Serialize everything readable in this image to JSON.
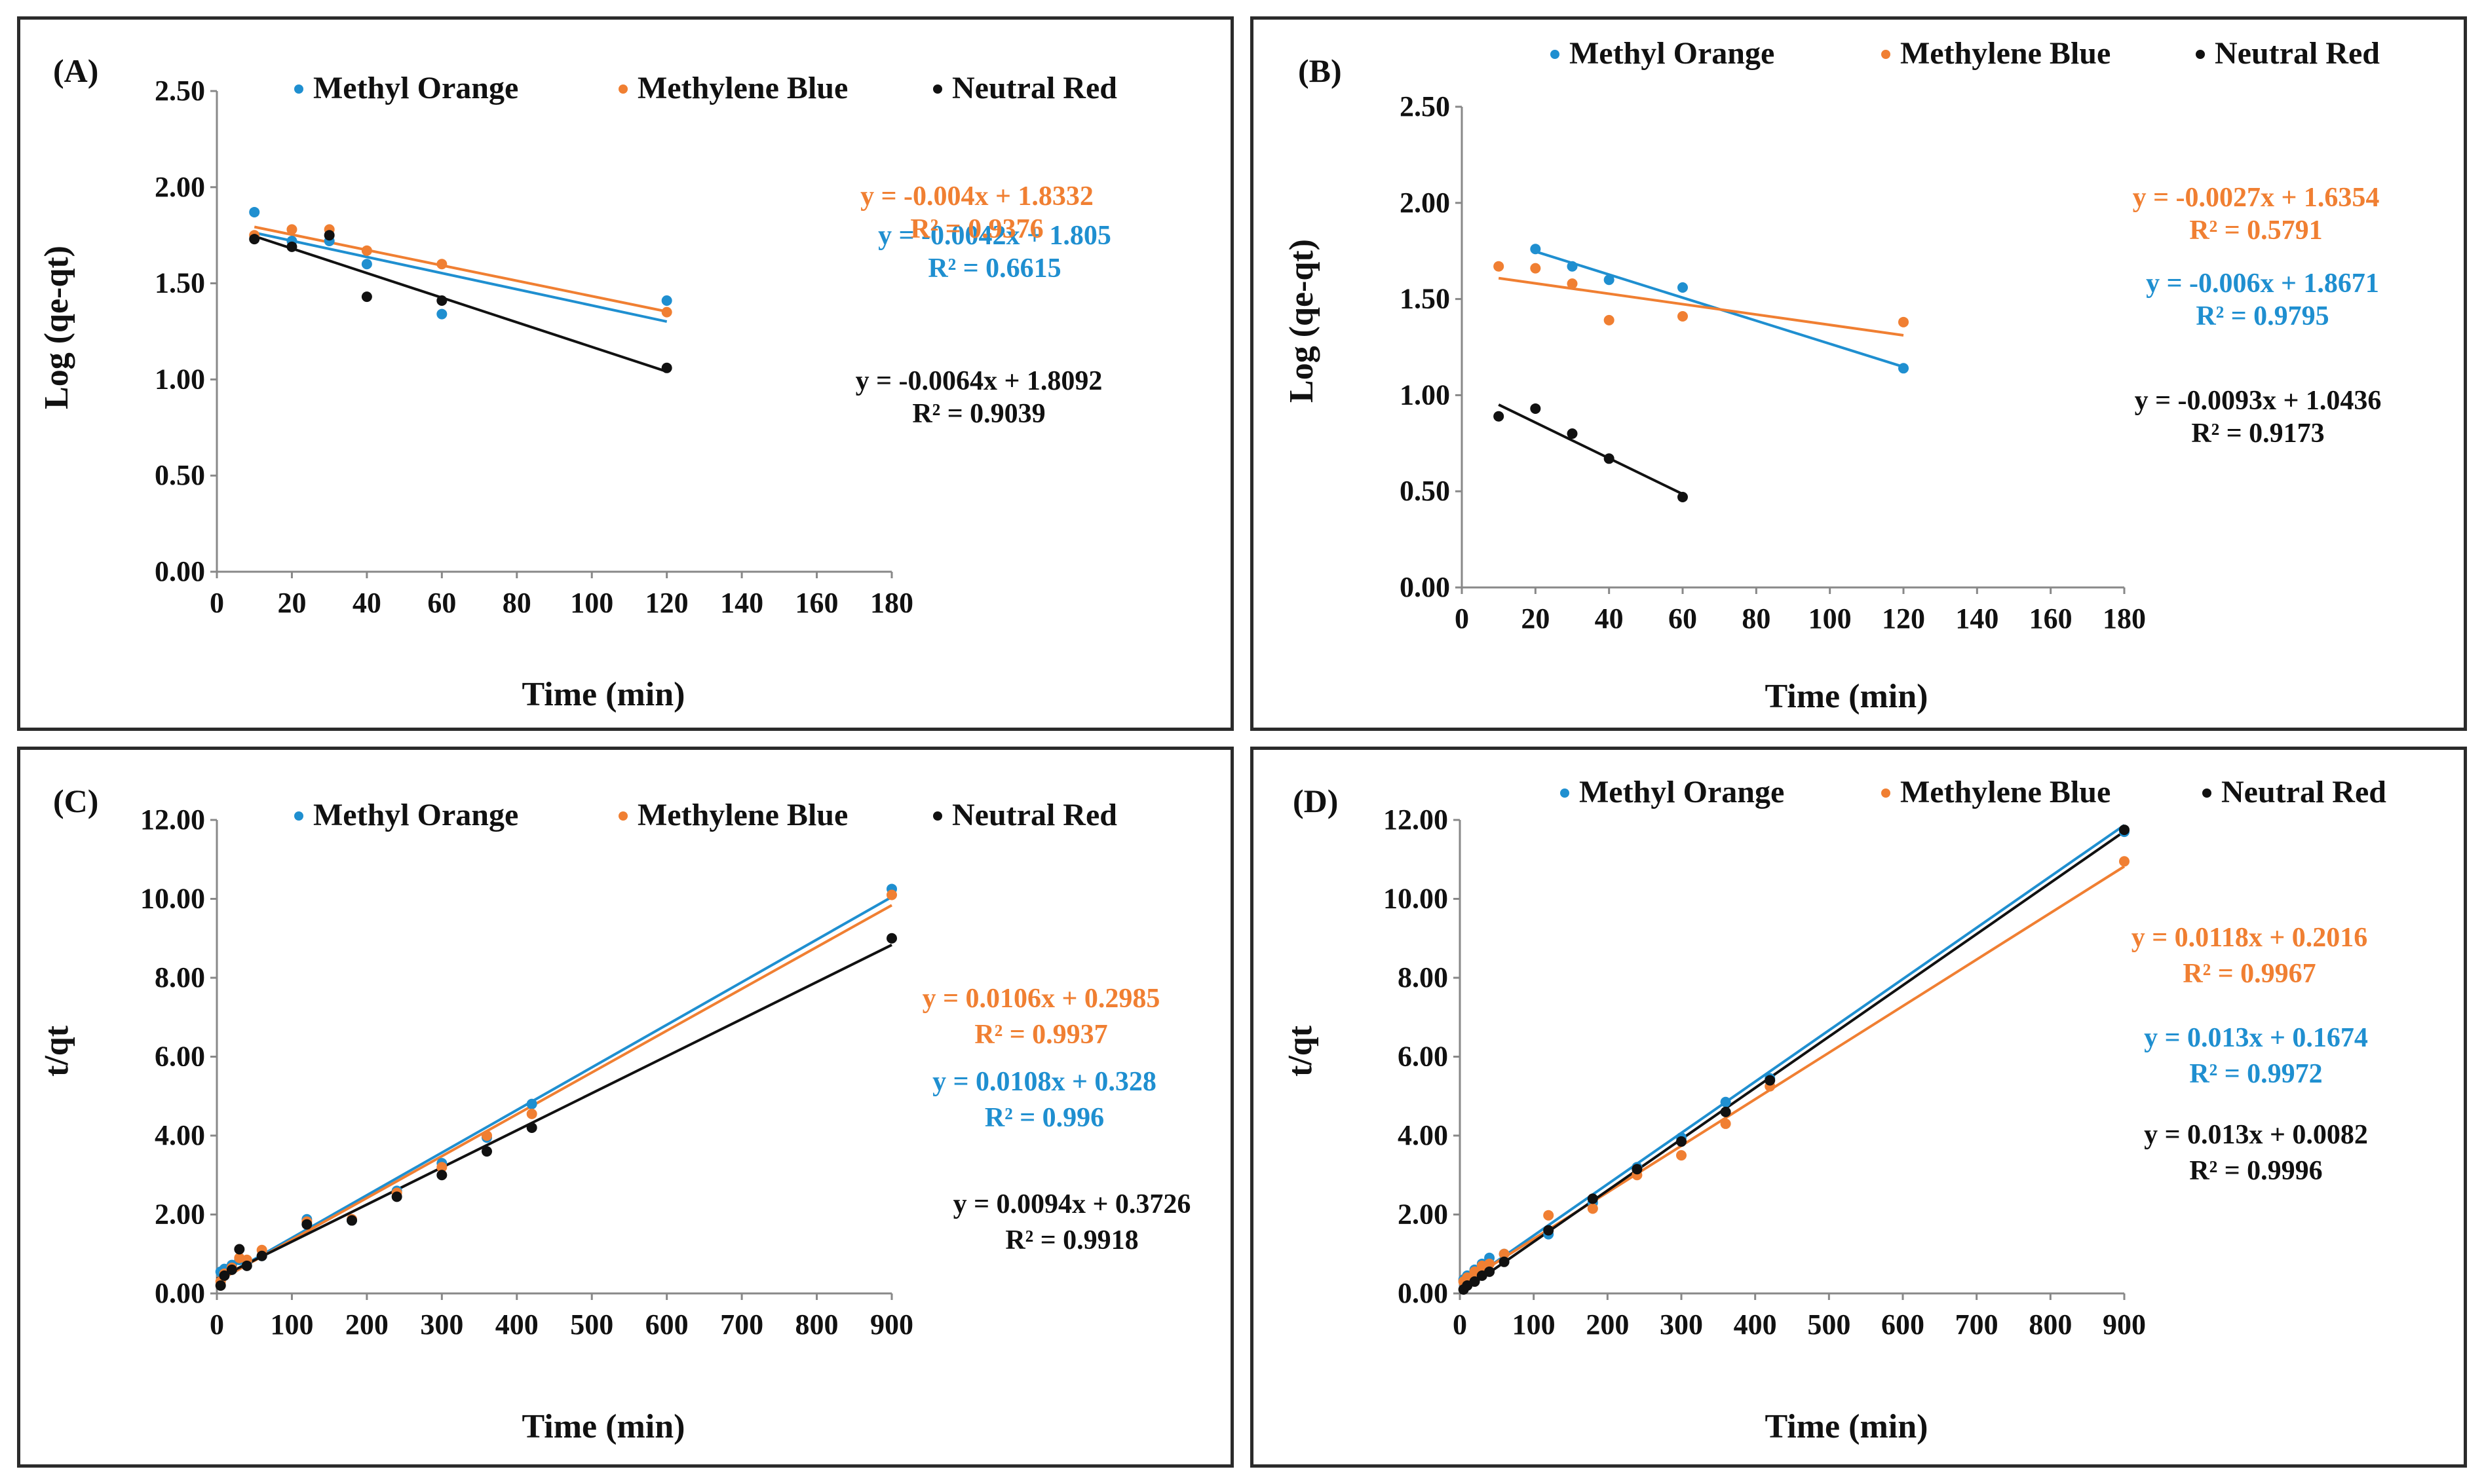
{
  "colors": {
    "methyl_orange": "#1f8fd0",
    "methylene_blue": "#f07f32",
    "neutral_red": "#111111"
  },
  "chart_data": [
    {
      "id": "A",
      "type": "scatter",
      "panel_label": "(A)",
      "xlabel": "Time (min)",
      "ylabel": "Log (qe-qt)",
      "xlim": [
        0,
        180
      ],
      "ylim": [
        0,
        2.5
      ],
      "x_ticks": [
        "0",
        "20",
        "40",
        "60",
        "80",
        "100",
        "120",
        "140",
        "160",
        "180"
      ],
      "y_ticks": [
        "0.00",
        "0.50",
        "1.00",
        "1.50",
        "2.00",
        "2.50"
      ],
      "legend": [
        "Methyl Orange",
        "Methylene Blue",
        "Neutral Red"
      ],
      "series": [
        {
          "name": "Methyl Orange",
          "x": [
            10,
            20,
            30,
            40,
            60,
            120
          ],
          "y": [
            1.87,
            1.72,
            1.72,
            1.6,
            1.34,
            1.41
          ],
          "fit": {
            "slope": -0.0042,
            "intercept": 1.805,
            "x_range": [
              10,
              120
            ]
          },
          "equation": "y = -0.0042x + 1.805",
          "r2": "R² = 0.6615"
        },
        {
          "name": "Methylene Blue",
          "x": [
            10,
            20,
            30,
            40,
            60,
            120
          ],
          "y": [
            1.75,
            1.78,
            1.78,
            1.67,
            1.6,
            1.35
          ],
          "fit": {
            "slope": -0.004,
            "intercept": 1.8332,
            "x_range": [
              10,
              120
            ]
          },
          "equation": "y = -0.004x + 1.8332",
          "r2": "R² = 0.9376"
        },
        {
          "name": "Neutral Red",
          "x": [
            10,
            20,
            30,
            40,
            60,
            120
          ],
          "y": [
            1.73,
            1.69,
            1.75,
            1.43,
            1.41,
            1.06
          ],
          "fit": {
            "slope": -0.0064,
            "intercept": 1.8092,
            "x_range": [
              10,
              120
            ]
          },
          "equation": "y = -0.0064x + 1.8092",
          "r2": "R² = 0.9039"
        }
      ]
    },
    {
      "id": "B",
      "type": "scatter",
      "panel_label": "(B)",
      "xlabel": "Time (min)",
      "ylabel": "Log (qe-qt)",
      "xlim": [
        0,
        180
      ],
      "ylim": [
        0,
        2.5
      ],
      "x_ticks": [
        "0",
        "20",
        "40",
        "60",
        "80",
        "100",
        "120",
        "140",
        "160",
        "180"
      ],
      "y_ticks": [
        "0.00",
        "0.50",
        "1.00",
        "1.50",
        "2.00",
        "2.50"
      ],
      "legend": [
        "Methyl Orange",
        "Methylene Blue",
        "Neutral Red"
      ],
      "series": [
        {
          "name": "Methyl Orange",
          "x": [
            20,
            30,
            40,
            60,
            120
          ],
          "y": [
            1.76,
            1.67,
            1.6,
            1.56,
            1.14
          ],
          "fit": {
            "slope": -0.006,
            "intercept": 1.8671,
            "x_range": [
              20,
              120
            ]
          },
          "equation": "y = -0.006x + 1.8671",
          "r2": "R² = 0.9795"
        },
        {
          "name": "Methylene Blue",
          "x": [
            10,
            20,
            30,
            40,
            60,
            120
          ],
          "y": [
            1.67,
            1.66,
            1.58,
            1.39,
            1.41,
            1.38
          ],
          "fit": {
            "slope": -0.0027,
            "intercept": 1.6354,
            "x_range": [
              10,
              120
            ]
          },
          "equation": "y = -0.0027x + 1.6354",
          "r2": "R² = 0.5791"
        },
        {
          "name": "Neutral Red",
          "x": [
            10,
            20,
            30,
            40,
            60
          ],
          "y": [
            0.89,
            0.93,
            0.8,
            0.67,
            0.47
          ],
          "fit": {
            "slope": -0.0093,
            "intercept": 1.0436,
            "x_range": [
              10,
              60
            ]
          },
          "equation": "y = -0.0093x + 1.0436",
          "r2": "R² = 0.9173"
        }
      ]
    },
    {
      "id": "C",
      "type": "scatter",
      "panel_label": "(C)",
      "xlabel": "Time (min)",
      "ylabel": "t/qt",
      "xlim": [
        0,
        900
      ],
      "ylim": [
        0,
        12
      ],
      "x_ticks": [
        "0",
        "100",
        "200",
        "300",
        "400",
        "500",
        "600",
        "700",
        "800",
        "900"
      ],
      "y_ticks": [
        "0.00",
        "2.00",
        "4.00",
        "6.00",
        "8.00",
        "10.00",
        "12.00"
      ],
      "legend": [
        "Methyl Orange",
        "Methylene Blue",
        "Neutral Red"
      ],
      "series": [
        {
          "name": "Methyl Orange",
          "x": [
            5,
            10,
            20,
            30,
            40,
            60,
            120,
            180,
            240,
            300,
            360,
            420,
            900
          ],
          "y": [
            0.55,
            0.62,
            0.72,
            0.85,
            0.8,
            0.95,
            1.88,
            1.85,
            2.6,
            3.3,
            3.95,
            4.8,
            10.25
          ],
          "fit": {
            "slope": 0.0108,
            "intercept": 0.328,
            "x_range": [
              0,
              900
            ]
          },
          "equation": "y = 0.0108x + 0.328",
          "r2": "R² = 0.996"
        },
        {
          "name": "Methylene Blue",
          "x": [
            5,
            10,
            20,
            30,
            40,
            60,
            120,
            180,
            240,
            300,
            360,
            420,
            900
          ],
          "y": [
            0.3,
            0.5,
            0.65,
            0.9,
            0.85,
            1.1,
            1.82,
            1.88,
            2.55,
            3.2,
            4.0,
            4.55,
            10.1
          ],
          "fit": {
            "slope": 0.0106,
            "intercept": 0.2985,
            "x_range": [
              0,
              900
            ]
          },
          "equation": "y = 0.0106x + 0.2985",
          "r2": "R² = 0.9937"
        },
        {
          "name": "Neutral Red",
          "x": [
            5,
            10,
            20,
            30,
            40,
            60,
            120,
            180,
            240,
            300,
            360,
            420,
            900
          ],
          "y": [
            0.2,
            0.45,
            0.6,
            1.12,
            0.7,
            0.95,
            1.75,
            1.85,
            2.45,
            3.0,
            3.6,
            4.2,
            9.0
          ],
          "fit": {
            "slope": 0.0094,
            "intercept": 0.3726,
            "x_range": [
              0,
              900
            ]
          },
          "equation": "y = 0.0094x + 0.3726",
          "r2": "R² = 0.9918"
        }
      ]
    },
    {
      "id": "D",
      "type": "scatter",
      "panel_label": "(D)",
      "xlabel": "Time (min)",
      "ylabel": "t/qt",
      "xlim": [
        0,
        900
      ],
      "ylim": [
        0,
        12
      ],
      "x_ticks": [
        "0",
        "100",
        "200",
        "300",
        "400",
        "500",
        "600",
        "700",
        "800",
        "900"
      ],
      "y_ticks": [
        "0.00",
        "2.00",
        "4.00",
        "6.00",
        "8.00",
        "10.00",
        "12.00"
      ],
      "legend": [
        "Methyl Orange",
        "Methylene Blue",
        "Neutral Red"
      ],
      "series": [
        {
          "name": "Methyl Orange",
          "x": [
            5,
            10,
            20,
            30,
            40,
            60,
            120,
            180,
            240,
            300,
            360,
            420,
            900
          ],
          "y": [
            0.35,
            0.45,
            0.6,
            0.75,
            0.9,
            1.0,
            1.5,
            2.3,
            3.2,
            3.95,
            4.85,
            5.45,
            11.7
          ],
          "fit": {
            "slope": 0.013,
            "intercept": 0.1674,
            "x_range": [
              0,
              900
            ]
          },
          "equation": "y = 0.013x + 0.1674",
          "r2": "R² = 0.9972"
        },
        {
          "name": "Methylene Blue",
          "x": [
            5,
            10,
            20,
            30,
            40,
            60,
            120,
            180,
            240,
            300,
            360,
            420,
            900
          ],
          "y": [
            0.3,
            0.4,
            0.55,
            0.7,
            0.75,
            1.0,
            1.98,
            2.15,
            3.0,
            3.5,
            4.3,
            5.25,
            10.95
          ],
          "fit": {
            "slope": 0.0118,
            "intercept": 0.2016,
            "x_range": [
              0,
              900
            ]
          },
          "equation": "y = 0.0118x + 0.2016",
          "r2": "R² = 0.9967"
        },
        {
          "name": "Neutral Red",
          "x": [
            5,
            10,
            20,
            30,
            40,
            60,
            120,
            180,
            240,
            300,
            360,
            420,
            900
          ],
          "y": [
            0.1,
            0.2,
            0.3,
            0.45,
            0.55,
            0.8,
            1.6,
            2.4,
            3.15,
            3.85,
            4.6,
            5.4,
            11.75
          ],
          "fit": {
            "slope": 0.013,
            "intercept": 0.0082,
            "x_range": [
              0,
              900
            ]
          },
          "equation": "y = 0.013x + 0.0082",
          "r2": "R² = 0.9996"
        }
      ]
    }
  ]
}
